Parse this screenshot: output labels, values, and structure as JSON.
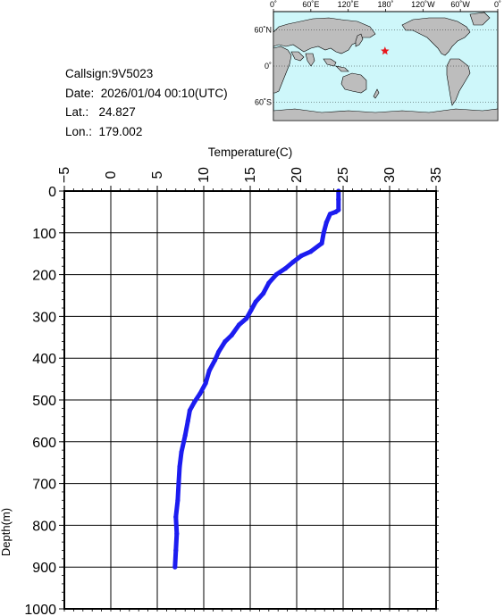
{
  "info": {
    "callsign": "Callsign:9V5023",
    "date": "Date:  2026/01/04 00:10(UTC)",
    "lat": "Lat.:   24.827",
    "lon": "Lon.:  179.002"
  },
  "map": {
    "lon_labels": [
      "0˚",
      "60˚E",
      "120˚E",
      "180˚",
      "120˚W",
      "60˚W",
      "0˚"
    ],
    "lat_labels": [
      "60˚N",
      "0˚",
      "60˚S"
    ],
    "marker": {
      "lat": 24.827,
      "lon": 179.002,
      "symbol": "star",
      "color": "#e8161c"
    },
    "ocean_color": "#cef7fa",
    "land_color": "#bdbdbd"
  },
  "chart_data": {
    "type": "line",
    "xlabel": "Temperature(C)",
    "ylabel": "Depth(m)",
    "xlim": [
      -5,
      35
    ],
    "ylim": [
      0,
      1000
    ],
    "y_inverted": true,
    "x_axis_position": "top",
    "x_ticks": [
      "−5",
      "0",
      "5",
      "10",
      "15",
      "20",
      "25",
      "30",
      "35"
    ],
    "y_ticks": [
      "0",
      "100",
      "200",
      "300",
      "400",
      "500",
      "600",
      "700",
      "800",
      "900",
      "1000"
    ],
    "grid": true,
    "line_color": "#1c1cf0",
    "series": [
      {
        "points": [
          [
            24.5,
            0
          ],
          [
            24.5,
            20
          ],
          [
            24.5,
            45
          ],
          [
            24.2,
            50
          ],
          [
            23.6,
            55
          ],
          [
            23.2,
            75
          ],
          [
            22.9,
            100
          ],
          [
            22.7,
            125
          ],
          [
            21.5,
            145
          ],
          [
            20.5,
            155
          ],
          [
            19.6,
            170
          ],
          [
            18.8,
            185
          ],
          [
            17.8,
            200
          ],
          [
            17.0,
            220
          ],
          [
            16.4,
            245
          ],
          [
            15.6,
            265
          ],
          [
            15.1,
            285
          ],
          [
            14.6,
            305
          ],
          [
            13.8,
            320
          ],
          [
            13.0,
            345
          ],
          [
            12.3,
            360
          ],
          [
            11.6,
            385
          ],
          [
            11.2,
            405
          ],
          [
            10.6,
            430
          ],
          [
            10.2,
            460
          ],
          [
            9.6,
            485
          ],
          [
            9.0,
            505
          ],
          [
            8.5,
            525
          ],
          [
            8.3,
            550
          ],
          [
            8.0,
            585
          ],
          [
            7.6,
            625
          ],
          [
            7.4,
            660
          ],
          [
            7.3,
            700
          ],
          [
            7.2,
            740
          ],
          [
            7.0,
            780
          ],
          [
            7.1,
            820
          ],
          [
            7.0,
            860
          ],
          [
            6.9,
            900
          ]
        ]
      }
    ]
  }
}
